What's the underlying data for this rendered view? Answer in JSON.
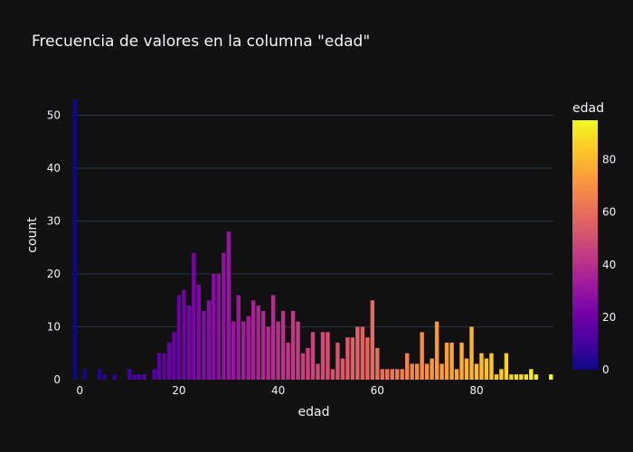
{
  "chart_data": {
    "type": "bar",
    "title": "Frecuencia de valores en la columna \"edad\"",
    "xlabel": "edad",
    "ylabel": "count",
    "xlim": [
      -1.5,
      95.5
    ],
    "ylim": [
      0,
      53
    ],
    "xticks": [
      0,
      20,
      40,
      60,
      80
    ],
    "yticks": [
      0,
      10,
      20,
      30,
      40,
      50
    ],
    "grid": true,
    "colorbar": {
      "title": "edad",
      "range": [
        0,
        95
      ],
      "ticks": [
        0,
        20,
        40,
        60,
        80
      ],
      "colorscale": [
        "#0d0887",
        "#46039f",
        "#7201a8",
        "#9c179e",
        "#bd3786",
        "#d8576b",
        "#ed7953",
        "#fb9f3a",
        "#fdca26",
        "#f0f921"
      ]
    },
    "x": [
      -1,
      1,
      4,
      5,
      7,
      10,
      11,
      12,
      13,
      15,
      16,
      17,
      18,
      19,
      20,
      21,
      22,
      23,
      24,
      25,
      26,
      27,
      28,
      29,
      30,
      31,
      32,
      33,
      34,
      35,
      36,
      37,
      38,
      39,
      40,
      41,
      42,
      43,
      44,
      45,
      46,
      47,
      48,
      49,
      50,
      51,
      52,
      53,
      54,
      55,
      56,
      57,
      58,
      59,
      60,
      61,
      62,
      63,
      64,
      65,
      66,
      67,
      68,
      69,
      70,
      71,
      72,
      73,
      74,
      75,
      76,
      77,
      78,
      79,
      80,
      81,
      82,
      83,
      84,
      85,
      86,
      87,
      88,
      89,
      90,
      91,
      92,
      95
    ],
    "values": [
      53,
      2,
      2,
      1,
      1,
      2,
      1,
      1,
      1,
      2,
      5,
      5,
      7,
      9,
      16,
      17,
      14,
      24,
      18,
      13,
      15,
      20,
      20,
      24,
      28,
      11,
      16,
      11,
      12,
      15,
      14,
      13,
      10,
      16,
      11,
      13,
      7,
      13,
      11,
      5,
      6,
      9,
      3,
      9,
      9,
      2,
      7,
      4,
      8,
      8,
      10,
      10,
      8,
      15,
      6,
      2,
      2,
      2,
      2,
      2,
      5,
      3,
      3,
      9,
      3,
      4,
      11,
      3,
      7,
      7,
      2,
      7,
      4,
      10,
      3,
      5,
      4,
      5,
      1,
      2,
      5,
      1,
      1,
      1,
      1,
      2,
      1,
      1
    ]
  }
}
